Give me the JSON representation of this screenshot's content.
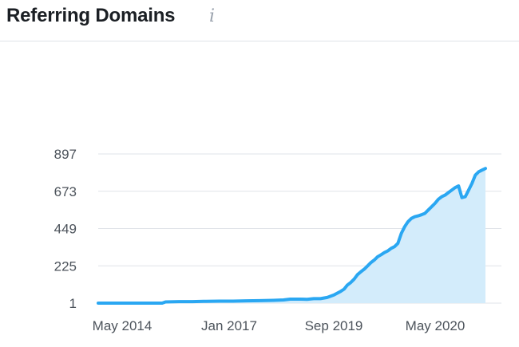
{
  "widget": {
    "title": "Referring Domains",
    "info_icon": "info-icon"
  },
  "colors": {
    "line": "#2aa7f2",
    "area": "#d3ecfb",
    "grid": "#dfe3e8",
    "tick_text": "#4c535b"
  },
  "chart_data": {
    "type": "area",
    "title": "Referring Domains",
    "xlabel": "",
    "ylabel": "",
    "ylim": [
      1,
      897
    ],
    "y_ticks": [
      1,
      225,
      449,
      673,
      897
    ],
    "y_tick_labels": [
      "1",
      "225",
      "449",
      "673",
      "897"
    ],
    "x_tick_labels": [
      "May 2014",
      "Jan 2017",
      "Sep 2019",
      "May 2020"
    ],
    "grid": true,
    "legend": "none",
    "series": [
      {
        "points": [
          [
            "2013-11",
            1
          ],
          [
            "2014-03",
            1
          ],
          [
            "2014-07",
            1
          ],
          [
            "2014-11",
            1
          ],
          [
            "2015-03",
            1
          ],
          [
            "2015-06",
            1
          ],
          [
            "2015-07",
            8
          ],
          [
            "2015-11",
            10
          ],
          [
            "2016-03",
            10
          ],
          [
            "2016-07",
            12
          ],
          [
            "2016-11",
            13
          ],
          [
            "2017-03",
            13
          ],
          [
            "2017-07",
            15
          ],
          [
            "2017-11",
            16
          ],
          [
            "2018-03",
            18
          ],
          [
            "2018-06",
            20
          ],
          [
            "2018-08",
            25
          ],
          [
            "2018-11",
            25
          ],
          [
            "2019-01",
            24
          ],
          [
            "2019-03",
            28
          ],
          [
            "2019-05",
            28
          ],
          [
            "2019-07",
            35
          ],
          [
            "2019-09",
            50
          ],
          [
            "2019-11",
            72
          ],
          [
            "2019-12",
            85
          ],
          [
            "2020-01",
            110
          ],
          [
            "2020-02",
            125
          ],
          [
            "2020-03",
            145
          ],
          [
            "2020-04",
            172
          ],
          [
            "2020-05",
            190
          ],
          [
            "2020-06",
            205
          ],
          [
            "2020-07",
            225
          ],
          [
            "2020-08",
            245
          ],
          [
            "2020-09",
            260
          ],
          [
            "2020-10",
            280
          ],
          [
            "2020-11",
            292
          ],
          [
            "2020-12",
            305
          ],
          [
            "2021-01",
            315
          ],
          [
            "2021-02",
            330
          ],
          [
            "2021-03",
            340
          ],
          [
            "2021-04",
            360
          ],
          [
            "2021-05",
            420
          ],
          [
            "2021-06",
            460
          ],
          [
            "2021-07",
            490
          ],
          [
            "2021-08",
            510
          ],
          [
            "2021-09",
            520
          ],
          [
            "2021-10",
            525
          ],
          [
            "2021-11",
            532
          ],
          [
            "2021-12",
            540
          ],
          [
            "2022-01",
            560
          ],
          [
            "2022-02",
            580
          ],
          [
            "2022-03",
            600
          ],
          [
            "2022-04",
            625
          ],
          [
            "2022-05",
            640
          ],
          [
            "2022-06",
            650
          ],
          [
            "2022-07",
            665
          ],
          [
            "2022-08",
            680
          ],
          [
            "2022-09",
            695
          ],
          [
            "2022-10",
            705
          ],
          [
            "2022-11",
            635
          ],
          [
            "2022-12",
            640
          ],
          [
            "2023-01",
            680
          ],
          [
            "2023-02",
            720
          ],
          [
            "2023-03",
            770
          ],
          [
            "2023-04",
            790
          ],
          [
            "2023-05",
            800
          ],
          [
            "2023-06",
            810
          ]
        ]
      }
    ]
  }
}
